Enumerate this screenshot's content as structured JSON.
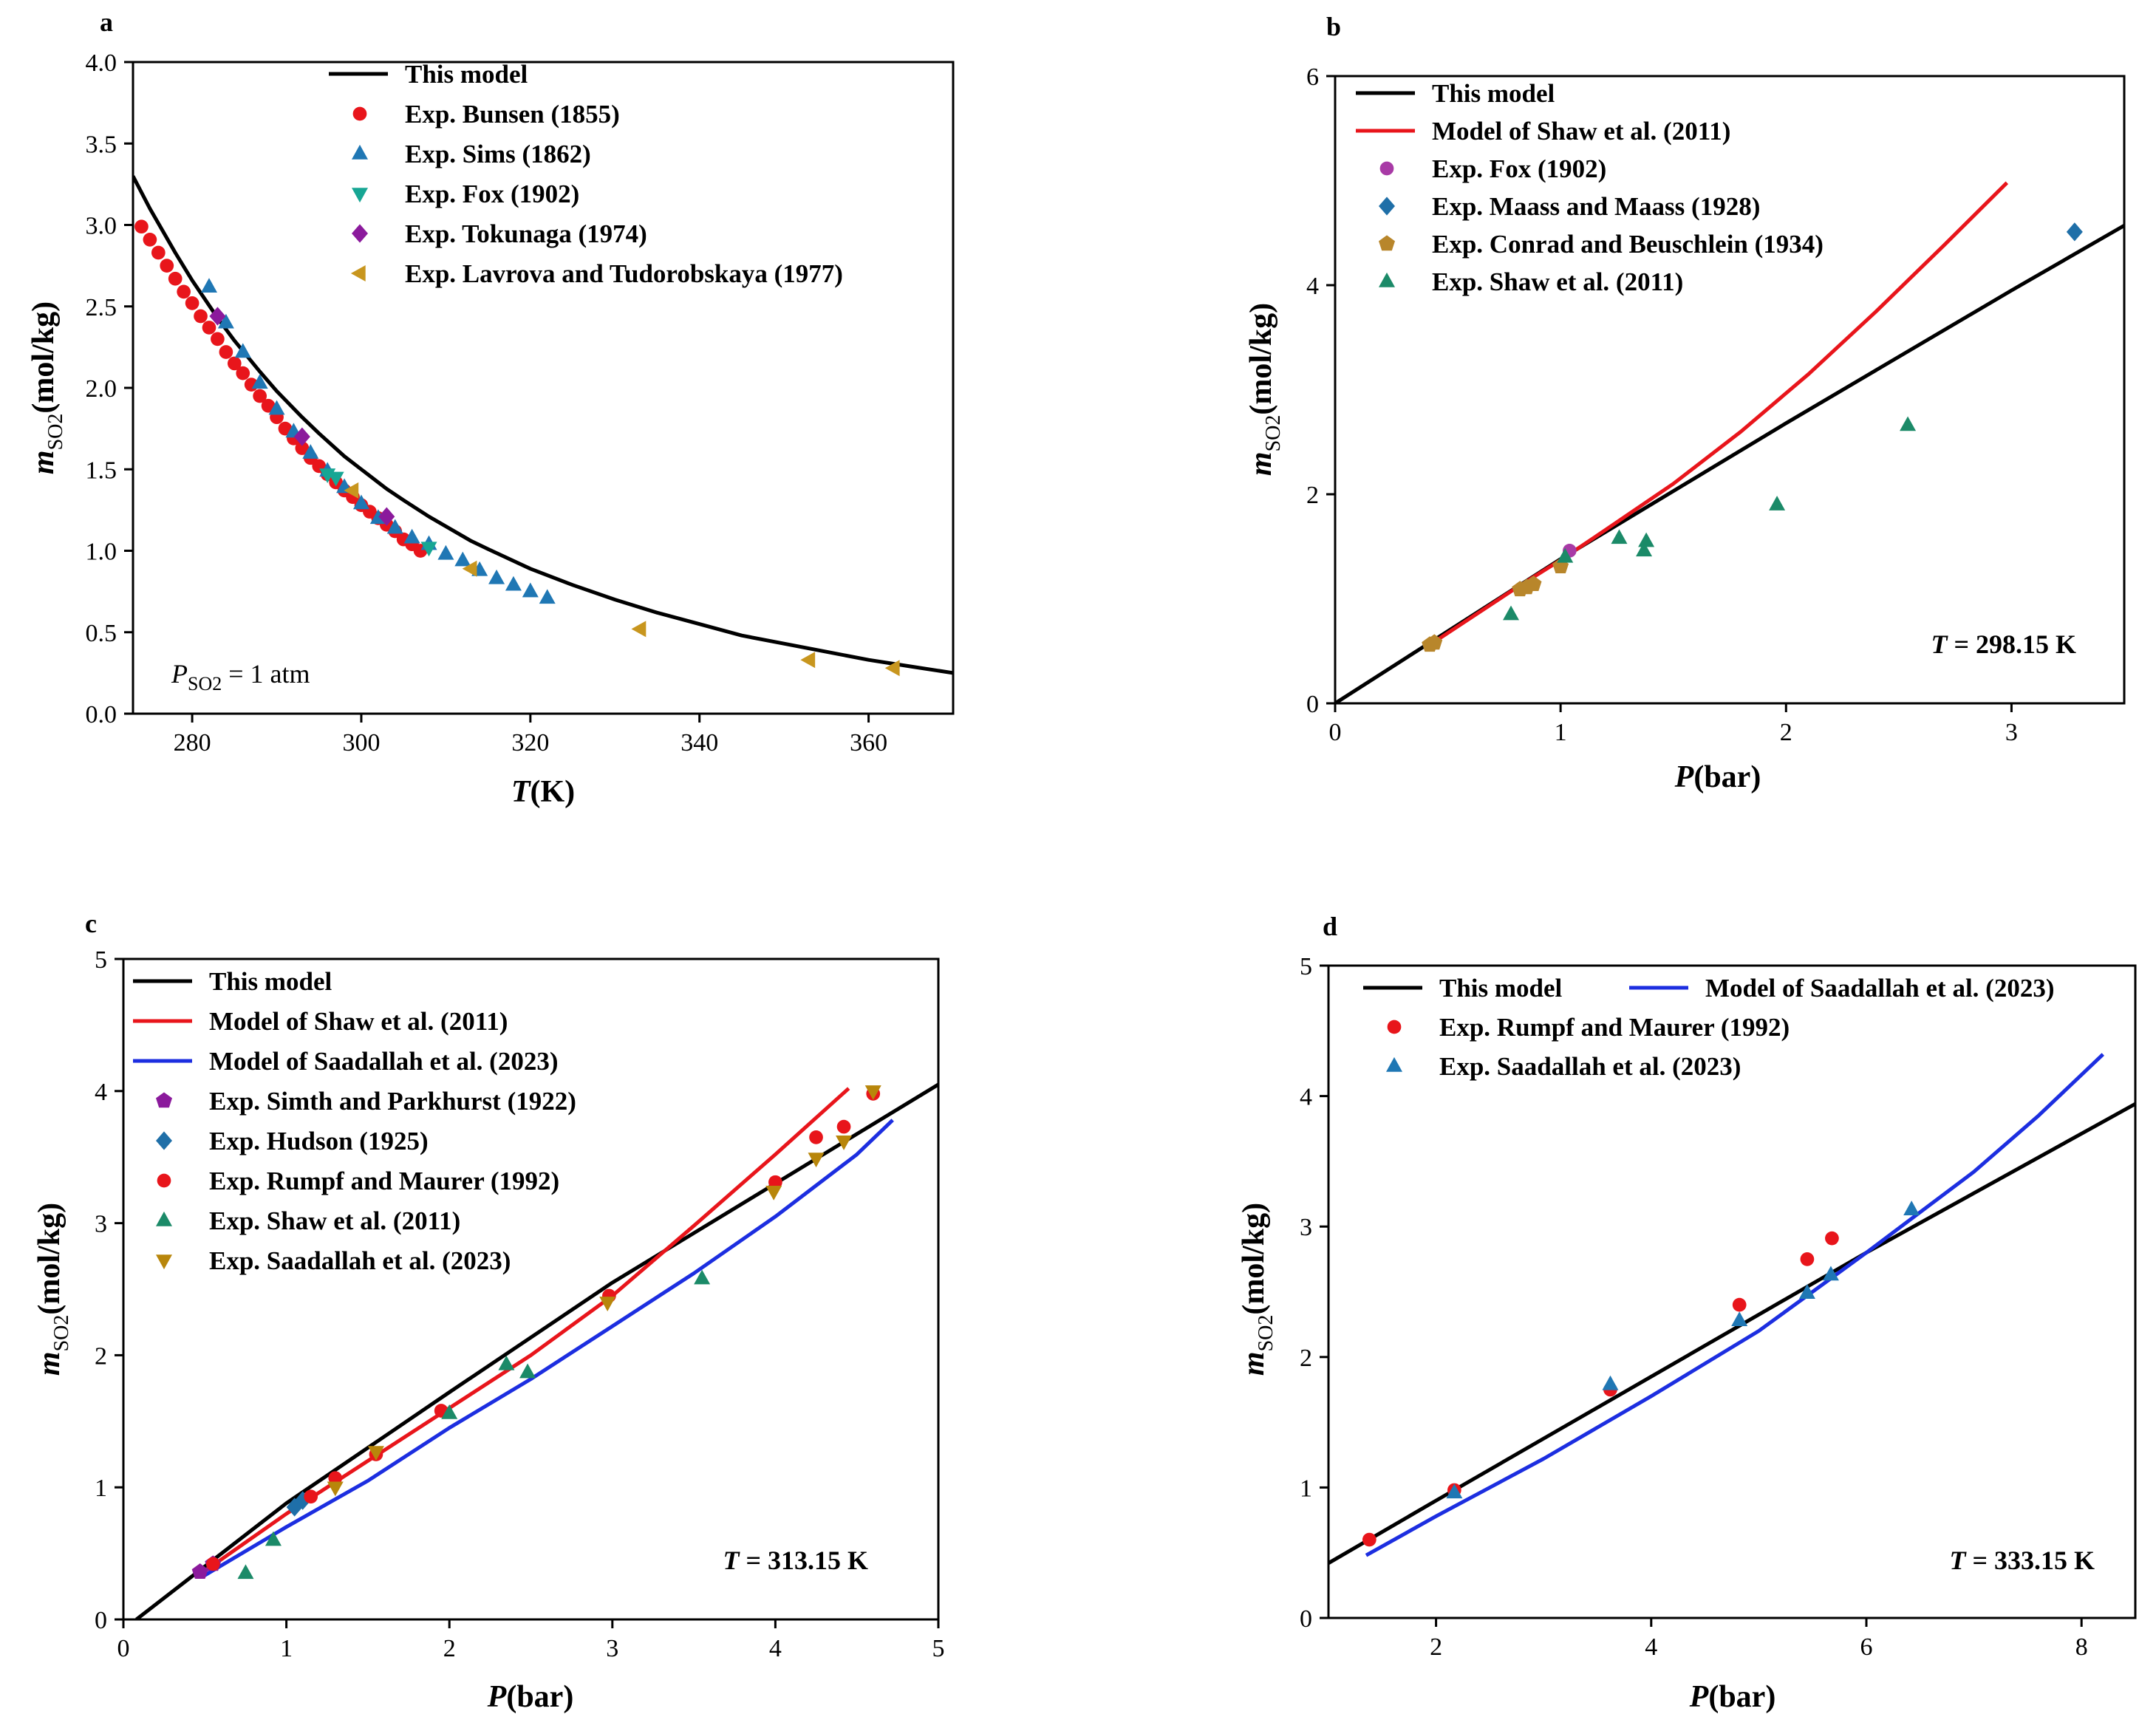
{
  "chart_data": [
    {
      "type": "scatter",
      "panel_label": "a",
      "xlabel": "T(K)",
      "ylabel": "m_SO2(mol/kg)",
      "ylabel_main": "m",
      "ylabel_sub": "SO2",
      "ylabel_unit": "(mol/kg)",
      "xlabel_main": "T",
      "xlabel_unit": "(K)",
      "xlim": [
        273,
        370
      ],
      "ylim": [
        0,
        4.0
      ],
      "xticks": [
        280,
        300,
        320,
        340,
        360
      ],
      "yticks": [
        0.0,
        0.5,
        1.0,
        1.5,
        2.0,
        2.5,
        3.0,
        3.5,
        4.0
      ],
      "ytick_labels": [
        "0.0",
        "0.5",
        "1.0",
        "1.5",
        "2.0",
        "2.5",
        "3.0",
        "3.5",
        "4.0"
      ],
      "legend_position": "top-right",
      "annotation": "P_SO2 = 1 atm",
      "annotation_parts": [
        "P",
        "SO2",
        " = 1 atm"
      ],
      "annotation_position": "bottom-left",
      "series": [
        {
          "name": "This model",
          "kind": "line",
          "color": "#000000",
          "x": [
            273,
            275,
            278,
            280,
            283,
            285,
            288,
            290,
            293,
            295,
            298,
            300,
            303,
            305,
            308,
            310,
            313,
            315,
            320,
            325,
            330,
            335,
            340,
            345,
            350,
            355,
            360,
            365,
            370
          ],
          "y": [
            3.3,
            3.1,
            2.83,
            2.66,
            2.43,
            2.29,
            2.1,
            1.98,
            1.82,
            1.72,
            1.58,
            1.5,
            1.38,
            1.31,
            1.21,
            1.15,
            1.06,
            1.01,
            0.89,
            0.79,
            0.7,
            0.62,
            0.55,
            0.48,
            0.43,
            0.38,
            0.33,
            0.29,
            0.25
          ]
        },
        {
          "name": "Exp. Bunsen (1855)",
          "kind": "marker",
          "marker": "circle",
          "color": "#e8151b",
          "x": [
            274,
            275,
            276,
            277,
            278,
            279,
            280,
            281,
            282,
            283,
            284,
            285,
            286,
            287,
            288,
            289,
            290,
            291,
            292,
            293,
            294,
            295,
            296,
            297,
            298,
            299,
            300,
            301,
            302,
            303,
            304,
            305,
            306,
            307
          ],
          "y": [
            2.99,
            2.91,
            2.83,
            2.75,
            2.67,
            2.59,
            2.52,
            2.44,
            2.37,
            2.3,
            2.22,
            2.15,
            2.09,
            2.02,
            1.95,
            1.89,
            1.82,
            1.75,
            1.69,
            1.63,
            1.57,
            1.52,
            1.47,
            1.42,
            1.37,
            1.33,
            1.28,
            1.24,
            1.2,
            1.16,
            1.12,
            1.07,
            1.04,
            1.0
          ]
        },
        {
          "name": "Exp. Sims (1862)",
          "kind": "marker",
          "marker": "triangle-up",
          "color": "#1f77b4",
          "x": [
            282,
            284,
            286,
            288,
            290,
            292,
            294,
            296,
            298,
            300,
            302,
            304,
            306,
            308,
            310,
            312,
            314,
            316,
            318,
            320,
            322
          ],
          "y": [
            2.62,
            2.4,
            2.22,
            2.03,
            1.87,
            1.73,
            1.6,
            1.49,
            1.39,
            1.29,
            1.2,
            1.14,
            1.08,
            1.04,
            0.98,
            0.94,
            0.88,
            0.83,
            0.79,
            0.75,
            0.71
          ]
        },
        {
          "name": "Exp. Fox (1902)",
          "kind": "marker",
          "marker": "triangle-down",
          "color": "#17a694",
          "x": [
            296,
            297,
            308
          ],
          "y": [
            1.47,
            1.45,
            1.02
          ]
        },
        {
          "name": "Exp. Tokunaga (1974)",
          "kind": "marker",
          "marker": "diamond",
          "color": "#8b1a9c",
          "x": [
            283,
            293,
            303
          ],
          "y": [
            2.44,
            1.7,
            1.21
          ]
        },
        {
          "name": "Exp. Lavrova and Tudorobskaya (1977)",
          "kind": "marker",
          "marker": "triangle-left",
          "color": "#c8961e",
          "x": [
            299,
            313,
            333,
            353,
            363
          ],
          "y": [
            1.37,
            0.89,
            0.52,
            0.33,
            0.28
          ]
        }
      ]
    },
    {
      "type": "scatter",
      "panel_label": "b",
      "xlabel": "P(bar)",
      "ylabel": "m_SO2(mol/kg)",
      "ylabel_main": "m",
      "ylabel_sub": "SO2",
      "ylabel_unit": "(mol/kg)",
      "xlabel_main": "P",
      "xlabel_unit": "(bar)",
      "xlim": [
        0,
        3.5
      ],
      "ylim": [
        0,
        6
      ],
      "xticks": [
        0,
        1,
        2,
        3
      ],
      "yticks": [
        0,
        2,
        4,
        6
      ],
      "legend_position": "top-left",
      "annotation": "T = 298.15 K",
      "annotation_parts": [
        "T",
        " = 298.15 K"
      ],
      "annotation_position": "bottom-right",
      "series": [
        {
          "name": "This model",
          "kind": "line",
          "color": "#000000",
          "x": [
            0,
            1,
            2,
            3,
            3.5
          ],
          "y": [
            0.0,
            1.38,
            2.68,
            3.95,
            4.57
          ]
        },
        {
          "name": "Model of Shaw et al. (2011)",
          "kind": "line",
          "color": "#e8151b",
          "x": [
            0.42,
            0.8,
            1.0,
            1.2,
            1.5,
            1.8,
            2.1,
            2.4,
            2.7,
            2.98
          ],
          "y": [
            0.56,
            1.1,
            1.37,
            1.66,
            2.1,
            2.6,
            3.15,
            3.75,
            4.38,
            4.98
          ]
        },
        {
          "name": "Exp. Fox (1902)",
          "kind": "marker",
          "marker": "circle",
          "color": "#a83aa6",
          "x": [
            1.04
          ],
          "y": [
            1.46
          ]
        },
        {
          "name": "Exp. Maass and Maass (1928)",
          "kind": "marker",
          "marker": "diamond",
          "color": "#1f6fa8",
          "x": [
            3.28
          ],
          "y": [
            4.51
          ]
        },
        {
          "name": "Exp. Conrad and Beuschlein (1934)",
          "kind": "marker",
          "marker": "pentagon",
          "color": "#b8862b",
          "x": [
            0.42,
            0.44,
            0.82,
            0.85,
            0.88,
            1.0
          ],
          "y": [
            0.56,
            0.58,
            1.09,
            1.11,
            1.14,
            1.31
          ]
        },
        {
          "name": "Exp. Shaw et al. (2011)",
          "kind": "marker",
          "marker": "triangle-up",
          "color": "#1b8a68",
          "x": [
            0.78,
            1.02,
            1.26,
            1.37,
            1.38,
            1.96,
            2.54
          ],
          "y": [
            0.85,
            1.4,
            1.58,
            1.46,
            1.55,
            1.9,
            2.66
          ]
        }
      ]
    },
    {
      "type": "scatter",
      "panel_label": "c",
      "xlabel": "P(bar)",
      "ylabel": "m_SO2(mol/kg)",
      "ylabel_main": "m",
      "ylabel_sub": "SO2",
      "ylabel_unit": "(mol/kg)",
      "xlabel_main": "P",
      "xlabel_unit": "(bar)",
      "xlim": [
        0,
        5
      ],
      "ylim": [
        0,
        5
      ],
      "xticks": [
        0,
        1,
        2,
        3,
        4,
        5
      ],
      "yticks": [
        0,
        1,
        2,
        3,
        4,
        5
      ],
      "legend_position": "top-left",
      "annotation": "T = 313.15 K",
      "annotation_parts": [
        "T",
        " = 313.15 K"
      ],
      "annotation_position": "bottom-right",
      "series": [
        {
          "name": "This model",
          "kind": "line",
          "color": "#000000",
          "x": [
            0.08,
            1,
            2,
            3,
            4,
            5
          ],
          "y": [
            0.0,
            0.88,
            1.72,
            2.55,
            3.3,
            4.05
          ]
        },
        {
          "name": "Model of Shaw et al. (2011)",
          "kind": "line",
          "color": "#e8151b",
          "x": [
            0.48,
            1.0,
            1.5,
            2.0,
            2.5,
            3.0,
            3.5,
            4.0,
            4.45
          ],
          "y": [
            0.35,
            0.8,
            1.2,
            1.6,
            2.0,
            2.45,
            2.98,
            3.52,
            4.02
          ]
        },
        {
          "name": "Model of Saadallah et al. (2023)",
          "kind": "line",
          "color": "#1c2ee0",
          "x": [
            0.48,
            1.0,
            1.5,
            2.0,
            2.5,
            3.0,
            3.5,
            4.0,
            4.5,
            4.72
          ],
          "y": [
            0.32,
            0.7,
            1.05,
            1.45,
            1.82,
            2.22,
            2.62,
            3.05,
            3.52,
            3.78
          ]
        },
        {
          "name": "Exp. Simth and Parkhurst (1922)",
          "kind": "marker",
          "marker": "pentagon",
          "color": "#8b1a9c",
          "x": [
            0.47,
            0.55
          ],
          "y": [
            0.36,
            0.42
          ]
        },
        {
          "name": "Exp. Hudson (1925)",
          "kind": "marker",
          "marker": "diamond",
          "color": "#1f6fa8",
          "x": [
            1.05,
            1.1
          ],
          "y": [
            0.85,
            0.9
          ]
        },
        {
          "name": "Exp. Rumpf and Maurer (1992)",
          "kind": "marker",
          "marker": "circle",
          "color": "#e8151b",
          "x": [
            0.55,
            1.15,
            1.3,
            1.55,
            1.95,
            2.98,
            4.0,
            4.25,
            4.42,
            4.6
          ],
          "y": [
            0.42,
            0.93,
            1.07,
            1.25,
            1.58,
            2.45,
            3.31,
            3.65,
            3.73,
            3.98
          ]
        },
        {
          "name": "Exp. Shaw et al. (2011)",
          "kind": "marker",
          "marker": "triangle-up",
          "color": "#1b8a68",
          "x": [
            0.75,
            0.92,
            2.0,
            2.35,
            2.48,
            3.55
          ],
          "y": [
            0.35,
            0.6,
            1.56,
            1.93,
            1.87,
            2.58
          ]
        },
        {
          "name": "Exp. Saadallah et al. (2023)",
          "kind": "marker",
          "marker": "triangle-down",
          "color": "#b8860b",
          "x": [
            1.3,
            1.55,
            2.97,
            3.99,
            4.25,
            4.42,
            4.6
          ],
          "y": [
            1.0,
            1.27,
            2.4,
            3.24,
            3.49,
            3.62,
            4.0
          ]
        }
      ]
    },
    {
      "type": "scatter",
      "panel_label": "d",
      "xlabel": "P(bar)",
      "ylabel": "m_SO2(mol/kg)",
      "ylabel_main": "m",
      "ylabel_sub": "SO2",
      "ylabel_unit": "(mol/kg)",
      "xlabel_main": "P",
      "xlabel_unit": "(bar)",
      "xlim": [
        1,
        8.5
      ],
      "ylim": [
        0,
        5
      ],
      "xticks": [
        2,
        4,
        6,
        8
      ],
      "yticks": [
        0,
        1,
        2,
        3,
        4,
        5
      ],
      "legend_position": "top",
      "annotation": "T = 333.15 K",
      "annotation_parts": [
        "T",
        " = 333.15 K"
      ],
      "annotation_position": "bottom-right",
      "series": [
        {
          "name": "This model",
          "kind": "line",
          "color": "#000000",
          "x": [
            1,
            2,
            4,
            6,
            8.5
          ],
          "y": [
            0.42,
            0.9,
            1.85,
            2.8,
            3.94
          ]
        },
        {
          "name": "Model of Saadallah et al. (2023)",
          "kind": "line",
          "color": "#1c2ee0",
          "x": [
            1.35,
            2.0,
            3.0,
            4.0,
            5.0,
            6.0,
            7.0,
            7.6,
            8.2
          ],
          "y": [
            0.48,
            0.78,
            1.22,
            1.7,
            2.2,
            2.8,
            3.42,
            3.85,
            4.32
          ]
        },
        {
          "name": "Exp. Rumpf and Maurer (1992)",
          "kind": "marker",
          "marker": "circle",
          "color": "#e8151b",
          "x": [
            1.38,
            2.17,
            3.62,
            4.82,
            5.45,
            5.68
          ],
          "y": [
            0.6,
            0.98,
            1.75,
            2.4,
            2.75,
            2.91
          ]
        },
        {
          "name": "Exp. Saadallah et al. (2023)",
          "kind": "marker",
          "marker": "triangle-up",
          "color": "#1f77b4",
          "x": [
            2.17,
            3.62,
            4.82,
            5.45,
            5.67,
            6.42
          ],
          "y": [
            0.96,
            1.79,
            2.28,
            2.49,
            2.63,
            3.13
          ]
        }
      ]
    }
  ]
}
